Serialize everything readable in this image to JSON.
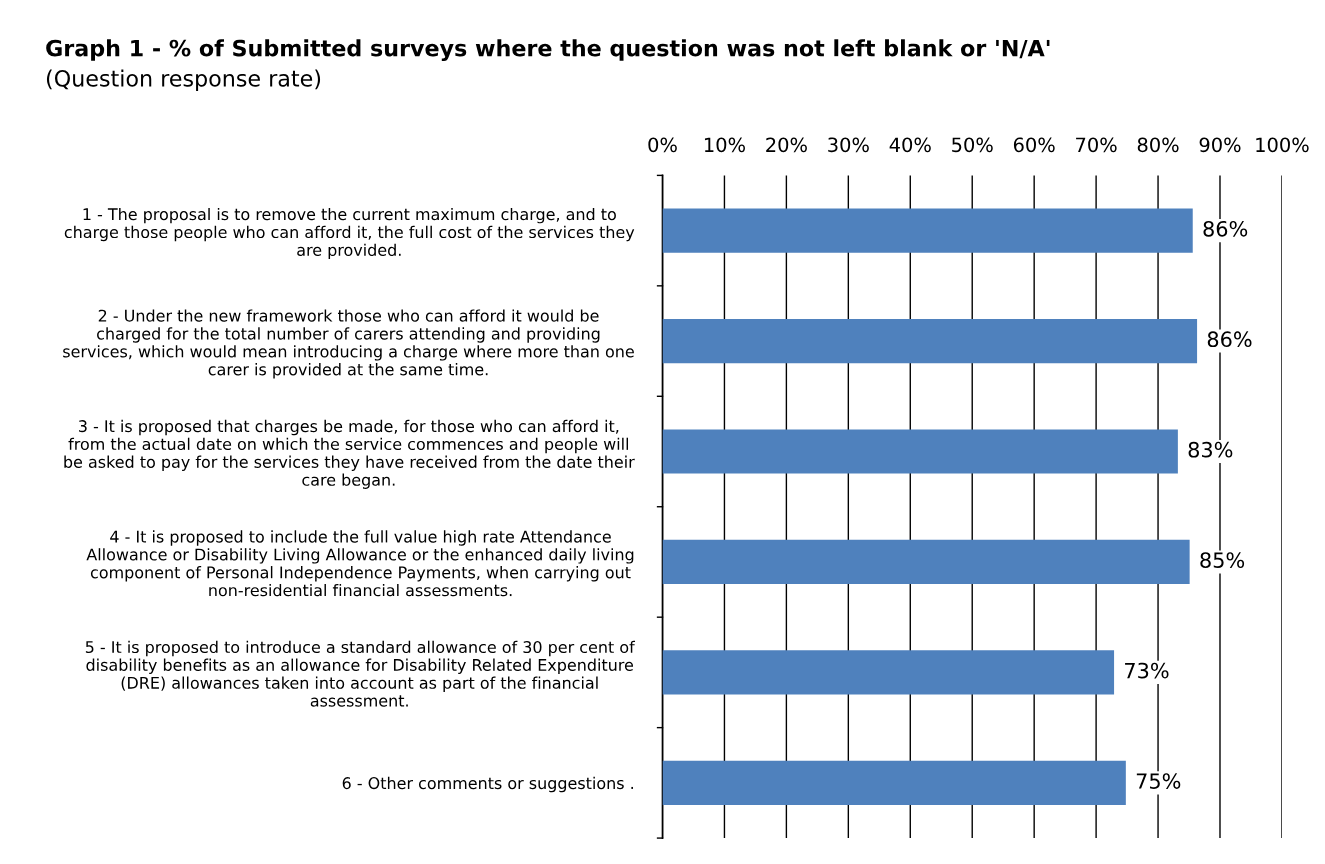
{
  "chart_data": {
    "type": "bar",
    "orientation": "horizontal",
    "title": "Graph 1 - % of Submitted surveys where the question was not left blank or 'N/A'",
    "subtitle": "(Question response rate)",
    "categories": [
      "1 - The proposal is to remove the current maximum charge, and to\ncharge those people who can afford it, the full cost of the services they\nare provided.",
      "2 - Under the new framework those who can afford it would be\ncharged for the total number of carers attending and providing\nservices, which would mean introducing a charge where more than one\ncarer is provided at the same time.",
      "3 - It is proposed that charges be made, for those who can afford it,\nfrom the actual date on which the service commences and people will\nbe asked to pay for the services they have received from the date their\ncare began.",
      "4 - It is proposed to include the full value high rate Attendance\nAllowance or Disability Living Allowance or the enhanced daily living\ncomponent of Personal Independence Payments, when carrying out\nnon-residential financial assessments.",
      "5 - It is proposed to introduce a standard allowance of 30 per cent of\ndisability benefits as an allowance for Disability Related Expenditure\n(DRE) allowances taken into account as part of the financial\nassessment.",
      "6 - Other comments or suggestions ."
    ],
    "values": [
      85.6,
      86.3,
      83.2,
      85.1,
      72.9,
      74.8
    ],
    "value_labels": [
      "86%",
      "86%",
      "83%",
      "85%",
      "73%",
      "75%"
    ],
    "color": "#4f81bd",
    "xlim": [
      0,
      100
    ],
    "xticks": [
      {
        "value": 0,
        "label": "0%"
      },
      {
        "value": 10,
        "label": "10%"
      },
      {
        "value": 20,
        "label": "20%"
      },
      {
        "value": 30,
        "label": "30%"
      },
      {
        "value": 40,
        "label": "40%"
      },
      {
        "value": 50,
        "label": "50%"
      },
      {
        "value": 60,
        "label": "60%"
      },
      {
        "value": 70,
        "label": "70%"
      },
      {
        "value": 80,
        "label": "80%"
      },
      {
        "value": 90,
        "label": "90%"
      },
      {
        "value": 100,
        "label": "100%"
      }
    ],
    "grid": "x",
    "legend": false
  }
}
